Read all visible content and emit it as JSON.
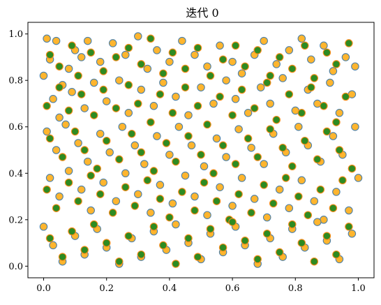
{
  "chart_data": {
    "type": "scatter",
    "title": "迭代 0",
    "xlabel": "",
    "ylabel": "",
    "xlim": [
      -0.05,
      1.05
    ],
    "ylim": [
      -0.05,
      1.05
    ],
    "xticks": [
      0.0,
      0.2,
      0.4,
      0.6,
      0.8,
      1.0
    ],
    "yticks": [
      0.0,
      0.2,
      0.4,
      0.6,
      0.8,
      1.0
    ],
    "xtick_labels": [
      "0.0",
      "0.2",
      "0.4",
      "0.6",
      "0.8",
      "1.0"
    ],
    "ytick_labels": [
      "0.0",
      "0.2",
      "0.4",
      "0.6",
      "0.8",
      "1.0"
    ],
    "grid": false,
    "legend": "none",
    "series": [
      {
        "marker_fill": "#ffb52e",
        "marker_edge": "#4a7fa8",
        "points": [
          [
            0.01,
            0.98
          ],
          [
            0.02,
            0.89
          ],
          [
            0.04,
            0.97
          ],
          [
            0.06,
            0.78
          ],
          [
            0.08,
            0.85
          ],
          [
            0.1,
            0.93
          ],
          [
            0.12,
            0.9
          ],
          [
            0.14,
            0.97
          ],
          [
            0.18,
            0.88
          ],
          [
            0.22,
            0.96
          ],
          [
            0.26,
            0.91
          ],
          [
            0.3,
            0.99
          ],
          [
            0.33,
            0.85
          ],
          [
            0.36,
            0.93
          ],
          [
            0.4,
            0.88
          ],
          [
            0.44,
            0.97
          ],
          [
            0.48,
            0.91
          ],
          [
            0.52,
            0.86
          ],
          [
            0.56,
            0.95
          ],
          [
            0.6,
            0.88
          ],
          [
            0.63,
            0.83
          ],
          [
            0.67,
            0.91
          ],
          [
            0.7,
            0.97
          ],
          [
            0.74,
            0.87
          ],
          [
            0.78,
            0.93
          ],
          [
            0.82,
            0.98
          ],
          [
            0.85,
            0.89
          ],
          [
            0.89,
            0.95
          ],
          [
            0.92,
            0.84
          ],
          [
            0.96,
            0.9
          ],
          [
            0.99,
            0.86
          ],
          [
            0.0,
            0.82
          ],
          [
            0.03,
            0.72
          ],
          [
            0.05,
            0.64
          ],
          [
            0.09,
            0.75
          ],
          [
            0.13,
            0.68
          ],
          [
            0.16,
            0.79
          ],
          [
            0.2,
            0.71
          ],
          [
            0.24,
            0.8
          ],
          [
            0.27,
            0.66
          ],
          [
            0.31,
            0.76
          ],
          [
            0.35,
            0.69
          ],
          [
            0.38,
            0.79
          ],
          [
            0.42,
            0.73
          ],
          [
            0.46,
            0.65
          ],
          [
            0.5,
            0.77
          ],
          [
            0.54,
            0.7
          ],
          [
            0.58,
            0.8
          ],
          [
            0.61,
            0.72
          ],
          [
            0.65,
            0.66
          ],
          [
            0.69,
            0.77
          ],
          [
            0.72,
            0.7
          ],
          [
            0.76,
            0.81
          ],
          [
            0.8,
            0.67
          ],
          [
            0.84,
            0.76
          ],
          [
            0.87,
            0.7
          ],
          [
            0.91,
            0.79
          ],
          [
            0.94,
            0.66
          ],
          [
            0.98,
            0.74
          ],
          [
            0.01,
            0.58
          ],
          [
            0.04,
            0.5
          ],
          [
            0.07,
            0.61
          ],
          [
            0.11,
            0.53
          ],
          [
            0.14,
            0.45
          ],
          [
            0.18,
            0.57
          ],
          [
            0.21,
            0.49
          ],
          [
            0.25,
            0.6
          ],
          [
            0.29,
            0.52
          ],
          [
            0.32,
            0.44
          ],
          [
            0.36,
            0.56
          ],
          [
            0.4,
            0.48
          ],
          [
            0.43,
            0.6
          ],
          [
            0.47,
            0.52
          ],
          [
            0.51,
            0.43
          ],
          [
            0.55,
            0.55
          ],
          [
            0.58,
            0.47
          ],
          [
            0.62,
            0.59
          ],
          [
            0.66,
            0.51
          ],
          [
            0.7,
            0.44
          ],
          [
            0.73,
            0.57
          ],
          [
            0.77,
            0.49
          ],
          [
            0.81,
            0.6
          ],
          [
            0.84,
            0.52
          ],
          [
            0.88,
            0.45
          ],
          [
            0.92,
            0.56
          ],
          [
            0.95,
            0.48
          ],
          [
            0.99,
            0.6
          ],
          [
            0.02,
            0.38
          ],
          [
            0.05,
            0.3
          ],
          [
            0.08,
            0.41
          ],
          [
            0.12,
            0.33
          ],
          [
            0.15,
            0.24
          ],
          [
            0.19,
            0.36
          ],
          [
            0.23,
            0.28
          ],
          [
            0.26,
            0.4
          ],
          [
            0.3,
            0.31
          ],
          [
            0.34,
            0.23
          ],
          [
            0.37,
            0.35
          ],
          [
            0.41,
            0.27
          ],
          [
            0.45,
            0.39
          ],
          [
            0.48,
            0.3
          ],
          [
            0.52,
            0.22
          ],
          [
            0.56,
            0.34
          ],
          [
            0.6,
            0.26
          ],
          [
            0.63,
            0.38
          ],
          [
            0.67,
            0.29
          ],
          [
            0.71,
            0.21
          ],
          [
            0.75,
            0.33
          ],
          [
            0.78,
            0.25
          ],
          [
            0.82,
            0.37
          ],
          [
            0.86,
            0.28
          ],
          [
            0.89,
            0.2
          ],
          [
            0.93,
            0.32
          ],
          [
            0.97,
            0.24
          ],
          [
            1.0,
            0.38
          ],
          [
            0.0,
            0.17
          ],
          [
            0.03,
            0.09
          ],
          [
            0.06,
            0.02
          ],
          [
            0.1,
            0.13
          ],
          [
            0.13,
            0.05
          ],
          [
            0.17,
            0.16
          ],
          [
            0.2,
            0.08
          ],
          [
            0.24,
            0.01
          ],
          [
            0.28,
            0.12
          ],
          [
            0.31,
            0.04
          ],
          [
            0.35,
            0.15
          ],
          [
            0.39,
            0.07
          ],
          [
            0.42,
            0.18
          ],
          [
            0.46,
            0.1
          ],
          [
            0.5,
            0.03
          ],
          [
            0.53,
            0.14
          ],
          [
            0.57,
            0.06
          ],
          [
            0.61,
            0.17
          ],
          [
            0.64,
            0.09
          ],
          [
            0.68,
            0.01
          ],
          [
            0.72,
            0.12
          ],
          [
            0.76,
            0.04
          ],
          [
            0.79,
            0.16
          ],
          [
            0.83,
            0.08
          ],
          [
            0.87,
            0.19
          ],
          [
            0.9,
            0.11
          ],
          [
            0.94,
            0.03
          ],
          [
            0.98,
            0.14
          ]
        ]
      },
      {
        "marker_fill": "#2e8b22",
        "marker_edge": "#ff8c1a",
        "points": [
          [
            0.02,
            0.91
          ],
          [
            0.05,
            0.86
          ],
          [
            0.09,
            0.95
          ],
          [
            0.11,
            0.82
          ],
          [
            0.15,
            0.92
          ],
          [
            0.19,
            0.84
          ],
          [
            0.23,
            0.9
          ],
          [
            0.27,
            0.94
          ],
          [
            0.31,
            0.87
          ],
          [
            0.34,
            0.98
          ],
          [
            0.38,
            0.83
          ],
          [
            0.41,
            0.92
          ],
          [
            0.45,
            0.85
          ],
          [
            0.49,
            0.94
          ],
          [
            0.53,
            0.82
          ],
          [
            0.57,
            0.89
          ],
          [
            0.61,
            0.95
          ],
          [
            0.64,
            0.86
          ],
          [
            0.68,
            0.93
          ],
          [
            0.72,
            0.82
          ],
          [
            0.75,
            0.9
          ],
          [
            0.79,
            0.85
          ],
          [
            0.83,
            0.95
          ],
          [
            0.86,
            0.81
          ],
          [
            0.9,
            0.92
          ],
          [
            0.93,
            0.87
          ],
          [
            0.97,
            0.96
          ],
          [
            0.01,
            0.69
          ],
          [
            0.05,
            0.77
          ],
          [
            0.08,
            0.67
          ],
          [
            0.12,
            0.74
          ],
          [
            0.16,
            0.65
          ],
          [
            0.19,
            0.76
          ],
          [
            0.23,
            0.68
          ],
          [
            0.27,
            0.78
          ],
          [
            0.3,
            0.7
          ],
          [
            0.34,
            0.62
          ],
          [
            0.37,
            0.74
          ],
          [
            0.41,
            0.66
          ],
          [
            0.45,
            0.77
          ],
          [
            0.49,
            0.69
          ],
          [
            0.52,
            0.61
          ],
          [
            0.56,
            0.73
          ],
          [
            0.6,
            0.65
          ],
          [
            0.63,
            0.76
          ],
          [
            0.67,
            0.68
          ],
          [
            0.71,
            0.79
          ],
          [
            0.74,
            0.63
          ],
          [
            0.78,
            0.74
          ],
          [
            0.82,
            0.66
          ],
          [
            0.85,
            0.77
          ],
          [
            0.89,
            0.69
          ],
          [
            0.93,
            0.62
          ],
          [
            0.96,
            0.73
          ],
          [
            0.02,
            0.55
          ],
          [
            0.06,
            0.47
          ],
          [
            0.1,
            0.58
          ],
          [
            0.13,
            0.5
          ],
          [
            0.17,
            0.42
          ],
          [
            0.2,
            0.54
          ],
          [
            0.24,
            0.46
          ],
          [
            0.28,
            0.57
          ],
          [
            0.31,
            0.49
          ],
          [
            0.35,
            0.41
          ],
          [
            0.39,
            0.53
          ],
          [
            0.42,
            0.45
          ],
          [
            0.46,
            0.56
          ],
          [
            0.5,
            0.48
          ],
          [
            0.54,
            0.4
          ],
          [
            0.57,
            0.52
          ],
          [
            0.61,
            0.44
          ],
          [
            0.65,
            0.55
          ],
          [
            0.68,
            0.47
          ],
          [
            0.72,
            0.59
          ],
          [
            0.76,
            0.51
          ],
          [
            0.79,
            0.43
          ],
          [
            0.83,
            0.54
          ],
          [
            0.87,
            0.46
          ],
          [
            0.9,
            0.58
          ],
          [
            0.94,
            0.5
          ],
          [
            0.98,
            0.42
          ],
          [
            0.01,
            0.33
          ],
          [
            0.04,
            0.25
          ],
          [
            0.08,
            0.36
          ],
          [
            0.11,
            0.28
          ],
          [
            0.15,
            0.39
          ],
          [
            0.18,
            0.31
          ],
          [
            0.22,
            0.23
          ],
          [
            0.26,
            0.34
          ],
          [
            0.29,
            0.26
          ],
          [
            0.33,
            0.37
          ],
          [
            0.37,
            0.29
          ],
          [
            0.4,
            0.21
          ],
          [
            0.44,
            0.32
          ],
          [
            0.48,
            0.24
          ],
          [
            0.51,
            0.36
          ],
          [
            0.55,
            0.28
          ],
          [
            0.59,
            0.2
          ],
          [
            0.62,
            0.31
          ],
          [
            0.66,
            0.23
          ],
          [
            0.7,
            0.35
          ],
          [
            0.73,
            0.27
          ],
          [
            0.77,
            0.38
          ],
          [
            0.81,
            0.3
          ],
          [
            0.84,
            0.22
          ],
          [
            0.88,
            0.33
          ],
          [
            0.92,
            0.25
          ],
          [
            0.95,
            0.37
          ],
          [
            0.02,
            0.12
          ],
          [
            0.06,
            0.04
          ],
          [
            0.09,
            0.15
          ],
          [
            0.13,
            0.07
          ],
          [
            0.16,
            0.18
          ],
          [
            0.2,
            0.1
          ],
          [
            0.24,
            0.02
          ],
          [
            0.27,
            0.13
          ],
          [
            0.31,
            0.05
          ],
          [
            0.35,
            0.17
          ],
          [
            0.38,
            0.09
          ],
          [
            0.42,
            0.01
          ],
          [
            0.46,
            0.12
          ],
          [
            0.49,
            0.04
          ],
          [
            0.53,
            0.16
          ],
          [
            0.57,
            0.08
          ],
          [
            0.6,
            0.19
          ],
          [
            0.64,
            0.11
          ],
          [
            0.68,
            0.03
          ],
          [
            0.71,
            0.14
          ],
          [
            0.75,
            0.06
          ],
          [
            0.79,
            0.18
          ],
          [
            0.82,
            0.1
          ],
          [
            0.86,
            0.02
          ],
          [
            0.9,
            0.13
          ],
          [
            0.93,
            0.05
          ],
          [
            0.97,
            0.17
          ]
        ]
      }
    ]
  }
}
